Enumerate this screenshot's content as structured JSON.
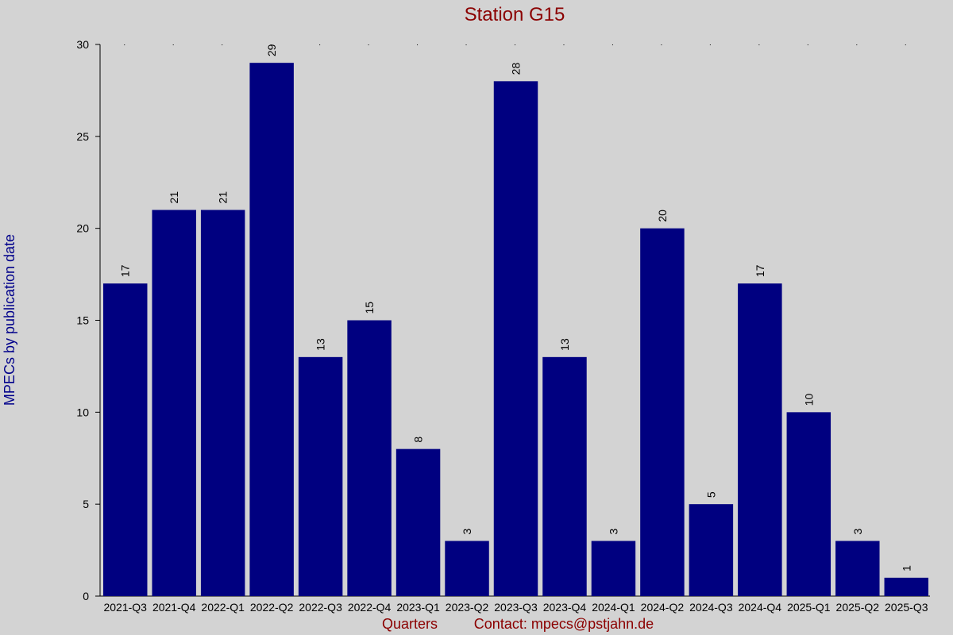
{
  "chart_data": {
    "type": "bar",
    "title": "Station G15",
    "xlabel": "Quarters",
    "ylabel": "MPECs by publication date",
    "footer_contact": "Contact: mpecs@pstjahn.de",
    "categories": [
      "2021-Q3",
      "2021-Q4",
      "2022-Q1",
      "2022-Q2",
      "2022-Q3",
      "2022-Q4",
      "2023-Q1",
      "2023-Q2",
      "2023-Q3",
      "2023-Q4",
      "2024-Q1",
      "2024-Q2",
      "2024-Q3",
      "2024-Q4",
      "2025-Q1",
      "2025-Q2",
      "2025-Q3"
    ],
    "values": [
      17,
      21,
      21,
      29,
      13,
      15,
      8,
      3,
      28,
      13,
      3,
      20,
      5,
      17,
      10,
      3,
      1
    ],
    "ylim": [
      0,
      30
    ],
    "yticks": [
      0,
      5,
      10,
      15,
      20,
      25,
      30
    ],
    "grid": false,
    "legend": "none",
    "colors": {
      "background": "#d3d3d3",
      "bar": "#000080",
      "title": "#8b0000",
      "ylabel": "#00008b",
      "xlabel": "#8b0000",
      "axis": "#000000",
      "text": "#000000"
    }
  }
}
